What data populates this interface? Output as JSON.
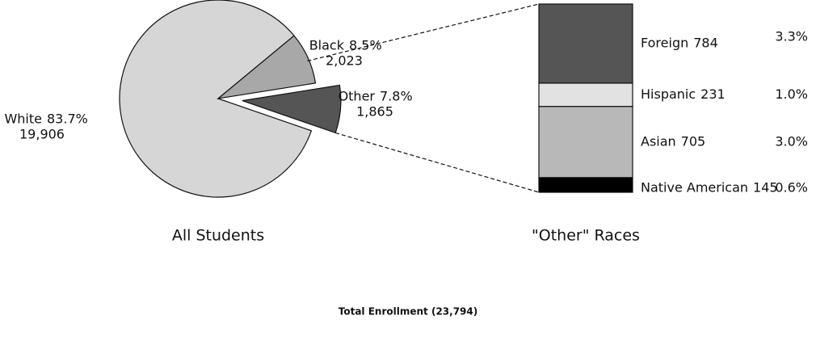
{
  "title": "Total Enrollment (23,794)",
  "chart_data": [
    {
      "type": "pie",
      "title": "All Students",
      "categories": [
        "White",
        "Black",
        "Other"
      ],
      "values": [
        83.7,
        8.5,
        7.8
      ],
      "value_labels": [
        "83.7%",
        "8.5%",
        "7.8%"
      ],
      "counts": [
        "19,906",
        "2,023",
        "1,865"
      ],
      "colors": [
        "#d6d6d6",
        "#a8a8a8",
        "#555555"
      ],
      "exploded": "Other"
    },
    {
      "type": "stacked-bar",
      "title": "\"Other\" Races",
      "categories": [
        "Foreign",
        "Hispanic",
        "Asian",
        "Native American"
      ],
      "counts": [
        784,
        231,
        705,
        145
      ],
      "values": [
        3.3,
        1.0,
        3.0,
        0.6
      ],
      "value_labels": [
        "3.3%",
        "1.0%",
        "3.0%",
        "0.6%"
      ],
      "colors": [
        "#555555",
        "#e2e2e2",
        "#b8b8b8",
        "#000000"
      ]
    }
  ]
}
